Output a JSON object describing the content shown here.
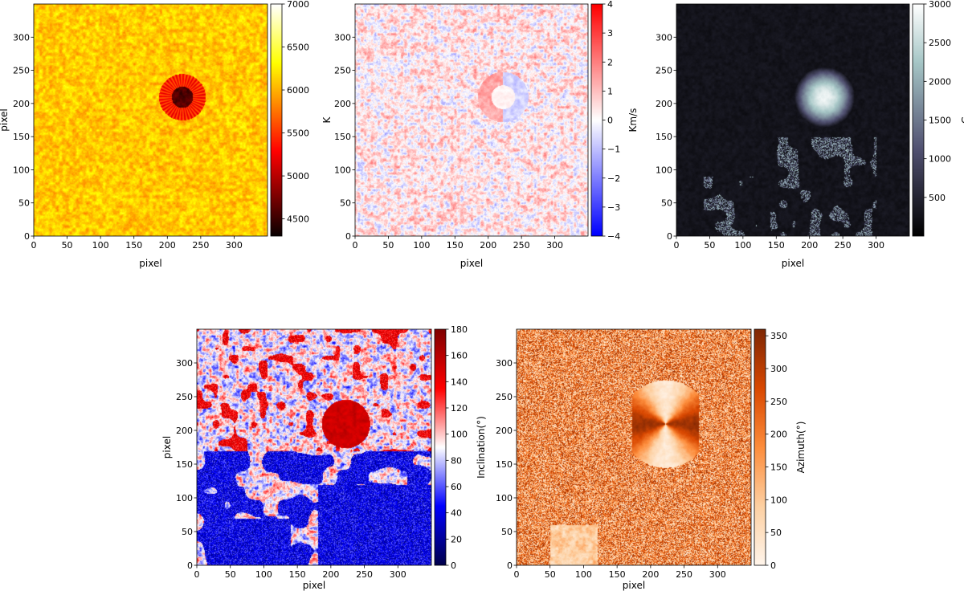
{
  "chart_data": [
    {
      "type": "heatmap",
      "map": "temperature",
      "colormap": "hot",
      "xlabel": "pixel",
      "ylabel": "pixel",
      "colorbar_label": "K",
      "xlim": [
        0,
        350
      ],
      "ylim": [
        0,
        350
      ],
      "xticks": [
        0,
        50,
        100,
        150,
        200,
        250,
        300
      ],
      "yticks": [
        0,
        50,
        100,
        150,
        200,
        250,
        300
      ],
      "vmin": 4300,
      "vmax": 7000,
      "colorbar_ticks": [
        4500,
        5000,
        5500,
        6000,
        6500,
        7000
      ],
      "background_value": 6100,
      "sunspot": {
        "center": [
          222,
          210
        ],
        "umbra_value": 4600,
        "penumbra_value": 5400
      }
    },
    {
      "type": "heatmap",
      "map": "velocity",
      "colormap": "bwr",
      "xlabel": "pixel",
      "ylabel": "",
      "colorbar_label": "Km/s",
      "xlim": [
        0,
        350
      ],
      "ylim": [
        0,
        350
      ],
      "xticks": [
        0,
        50,
        100,
        150,
        200,
        250,
        300
      ],
      "yticks": [
        0,
        50,
        100,
        150,
        200,
        250,
        300
      ],
      "vmin": -4,
      "vmax": 4,
      "colorbar_ticks": [
        "−4",
        "−3",
        "−2",
        "−1",
        "0",
        "1",
        "2",
        "3",
        "4"
      ],
      "background_value": 0.3
    },
    {
      "type": "heatmap",
      "map": "field_strength",
      "colormap": "bone",
      "xlabel": "pixel",
      "ylabel": "",
      "colorbar_label": "G",
      "xlim": [
        0,
        350
      ],
      "ylim": [
        0,
        350
      ],
      "xticks": [
        0,
        50,
        100,
        150,
        200,
        250,
        300
      ],
      "yticks": [
        0,
        50,
        100,
        150,
        200,
        250,
        300
      ],
      "vmin": 0,
      "vmax": 3000,
      "colorbar_ticks": [
        500,
        1000,
        1500,
        2000,
        2500,
        3000
      ],
      "background_value": 150,
      "sunspot": {
        "center": [
          222,
          210
        ],
        "peak_value": 3000
      }
    },
    {
      "type": "heatmap",
      "map": "inclination",
      "colormap": "seismic",
      "xlabel": "pixel",
      "ylabel": "pixel",
      "colorbar_label": "Inclination(°)",
      "xlim": [
        0,
        350
      ],
      "ylim": [
        0,
        350
      ],
      "xticks": [
        0,
        50,
        100,
        150,
        200,
        250,
        300
      ],
      "yticks": [
        0,
        50,
        100,
        150,
        200,
        250,
        300
      ],
      "vmin": 0,
      "vmax": 180,
      "colorbar_ticks": [
        0,
        20,
        40,
        60,
        80,
        100,
        120,
        140,
        160,
        180
      ],
      "background_value": 90,
      "sunspot": {
        "center": [
          222,
          210
        ],
        "value": 165
      }
    },
    {
      "type": "heatmap",
      "map": "azimuth",
      "colormap": "Oranges",
      "xlabel": "pixel",
      "ylabel": "",
      "colorbar_label": "Azimuth(°)",
      "xlim": [
        0,
        350
      ],
      "ylim": [
        0,
        350
      ],
      "xticks": [
        0,
        50,
        100,
        150,
        200,
        250,
        300
      ],
      "yticks": [
        0,
        50,
        100,
        150,
        200,
        250,
        300
      ],
      "vmin": 0,
      "vmax": 360,
      "colorbar_ticks": [
        0,
        50,
        100,
        150,
        200,
        250,
        300,
        350
      ],
      "background_value": 180
    }
  ]
}
